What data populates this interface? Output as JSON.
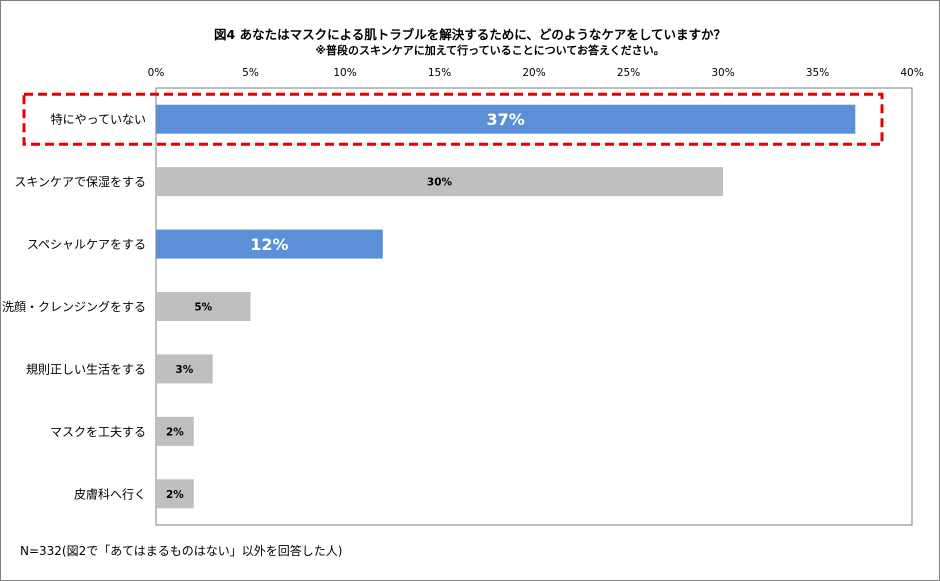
{
  "chart_data": {
    "type": "bar",
    "orientation": "horizontal",
    "title": "図4  あなたはマスクによる肌トラブルを解決するために、どのようなケアをしていますか？",
    "subtitle": "※普段のスキンケアに加えて行っていることについてお答えください。",
    "categories": [
      "特にやっていない",
      "スキンケアで保湿をする",
      "スペシャルケアをする",
      "洗顔・クレンジングをする",
      "規則正しい生活をする",
      "マスクを工夫する",
      "皮膚科へ行く"
    ],
    "values": [
      37,
      30,
      12,
      5,
      3,
      2,
      2
    ],
    "value_labels": [
      "37%",
      "30%",
      "12%",
      "5%",
      "3%",
      "2%",
      "2%"
    ],
    "highlight": [
      true,
      false,
      true,
      false,
      false,
      false,
      false
    ],
    "emphasized_category": "特にやっていない",
    "xticks": [
      "0%",
      "5%",
      "10%",
      "15%",
      "20%",
      "25%",
      "30%",
      "35%",
      "40%"
    ],
    "xlim": [
      0,
      40
    ],
    "grid": false,
    "legend": "none",
    "colors": {
      "highlight": "#5b8fd6",
      "normal": "#bfbfbf",
      "emphasis_box": "#e60000"
    }
  },
  "footnote": "N=332(図2で「あてはまるものはない」以外を回答した人)"
}
